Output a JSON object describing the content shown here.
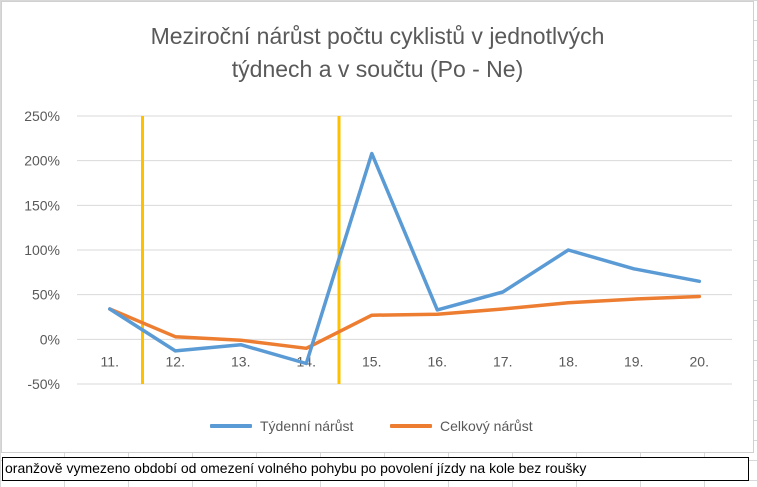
{
  "chart_data": {
    "type": "line",
    "title_lines": [
      "Meziroční nárůst počtu cyklistů v jednotlvých",
      "týdnech a v součtu (Po - Ne)"
    ],
    "categories": [
      "11.",
      "12.",
      "13.",
      "14.",
      "15.",
      "16.",
      "17.",
      "18.",
      "19.",
      "20."
    ],
    "y_ticks": [
      "250%",
      "200%",
      "150%",
      "100%",
      "50%",
      "0%",
      "-50%"
    ],
    "ylim": [
      -50,
      250
    ],
    "grid": "horizontal",
    "legend_position": "bottom",
    "series": [
      {
        "name": "Týdenní nárůst",
        "color": "#5b9bd5",
        "values": [
          34,
          -13,
          -6,
          -27,
          208,
          33,
          53,
          100,
          79,
          65
        ]
      },
      {
        "name": "Celkový nárůst",
        "color": "#ed7d31",
        "values": [
          34,
          3,
          -1,
          -10,
          27,
          28,
          34,
          41,
          45,
          48
        ]
      }
    ],
    "highlight_lines": {
      "color": "#ffc000",
      "between_categories": [
        [
          "11.",
          "12."
        ],
        [
          "14.",
          "15."
        ]
      ]
    }
  },
  "note": "oranžově vymezeno období od omezení volného pohybu po povolení jízdy na kole bez roušky"
}
